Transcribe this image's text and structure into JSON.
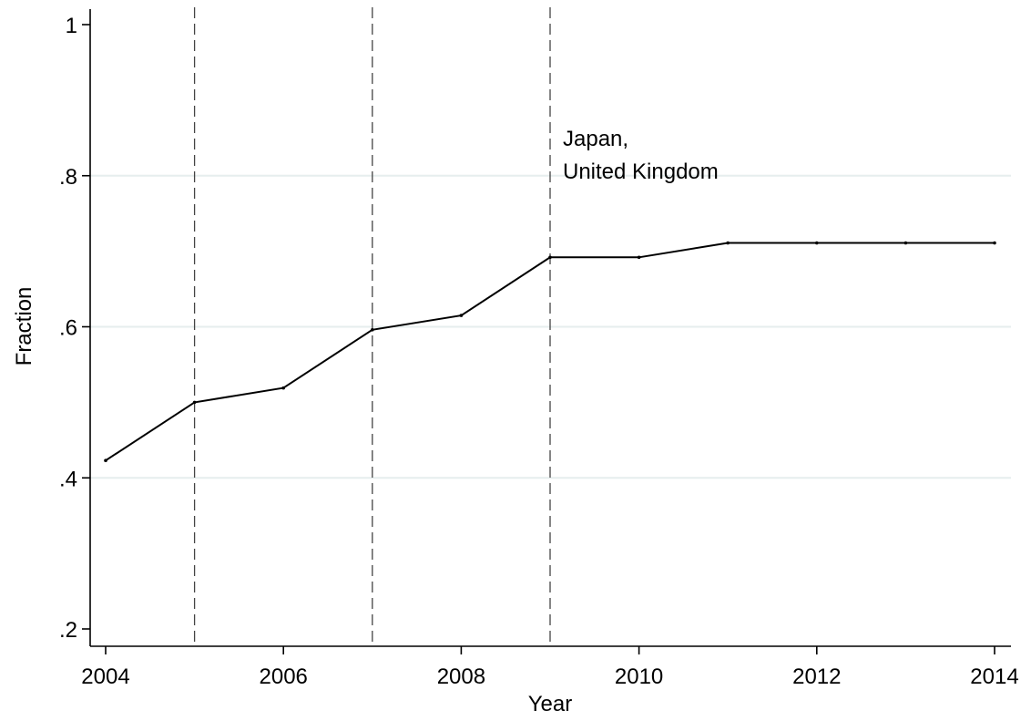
{
  "chart_data": {
    "type": "line",
    "title": "",
    "xlabel": "Year",
    "ylabel": "Fraction",
    "xlim": [
      2004,
      2014
    ],
    "ylim": [
      0.2,
      1.0
    ],
    "x_ticks": [
      2004,
      2006,
      2008,
      2010,
      2012,
      2014
    ],
    "x_tick_labels": [
      "2004",
      "2006",
      "2008",
      "2010",
      "2012",
      "2014"
    ],
    "y_ticks": [
      0.2,
      0.4,
      0.6,
      0.8,
      1.0
    ],
    "y_tick_labels": [
      ".2",
      ".4",
      ".6",
      ".8",
      "1"
    ],
    "grid": true,
    "line_color": "#000000",
    "grid_color": "#e6eeee",
    "x": [
      2004,
      2005,
      2006,
      2007,
      2008,
      2009,
      2010,
      2011,
      2012,
      2013,
      2014
    ],
    "series": [
      {
        "name": "",
        "values": [
          0.423,
          0.5,
          0.519,
          0.596,
          0.615,
          0.692,
          0.692,
          0.711,
          0.711,
          0.711,
          0.711
        ]
      }
    ],
    "vlines": [
      2005,
      2007,
      2009
    ],
    "annotations": [
      {
        "x": 2009,
        "y": 0.86,
        "lines": [
          "Japan,",
          "United Kingdom"
        ]
      }
    ]
  }
}
